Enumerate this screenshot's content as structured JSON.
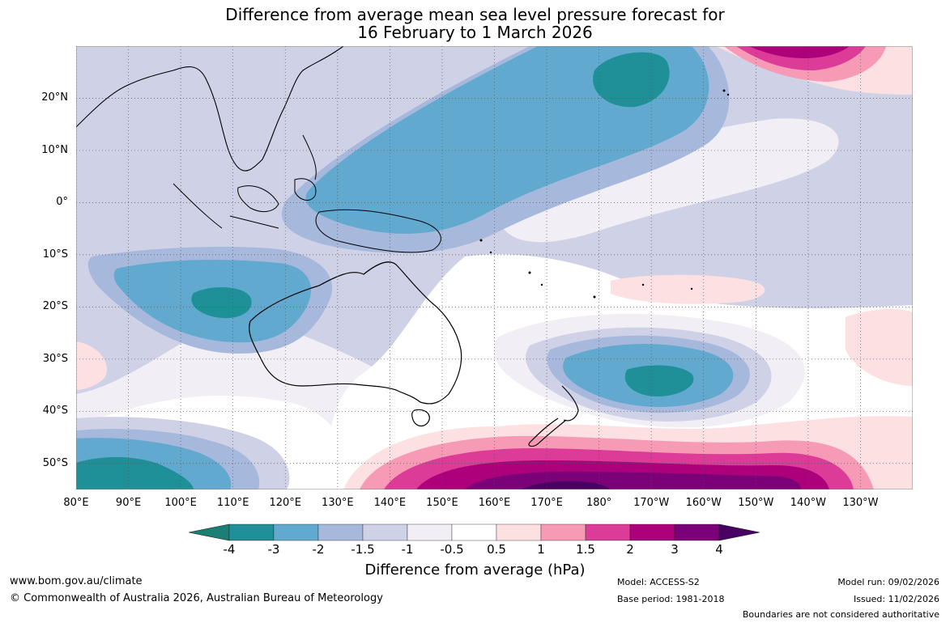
{
  "title": {
    "line1": "Difference from average mean sea level pressure forecast for",
    "line2": "16 February to 1 March 2026"
  },
  "map": {
    "lat_labels": [
      "20°N",
      "10°N",
      "0°",
      "10°S",
      "20°S",
      "30°S",
      "40°S",
      "50°S"
    ],
    "lon_labels": [
      "80°E",
      "90°E",
      "100°E",
      "110°E",
      "120°E",
      "130°E",
      "140°E",
      "150°E",
      "160°E",
      "170°E",
      "180°",
      "170°W",
      "160°W",
      "150°W",
      "140°W",
      "130°W"
    ],
    "extent": {
      "lon_min": 80,
      "lon_max": 240,
      "lat_min": -55,
      "lat_max": 30
    }
  },
  "colorbar": {
    "ticks": [
      "-4",
      "-3",
      "-2",
      "-1.5",
      "-1",
      "-0.5",
      "0.5",
      "1",
      "1.5",
      "2",
      "3",
      "4"
    ],
    "colors": [
      "#1b7f76",
      "#1f9097",
      "#62a9cf",
      "#a6b9dc",
      "#cfd1e7",
      "#f2eef6",
      "#ffffff",
      "#fde0e1",
      "#f69ab5",
      "#dc3b98",
      "#ad017c",
      "#7a0177",
      "#4a0063"
    ],
    "label": "Difference from average (hPa)"
  },
  "footer": {
    "website": "www.bom.gov.au/climate",
    "copyright": "© Commonwealth of Australia 2026, Australian Bureau of Meteorology",
    "model": "Model: ACCESS-S2",
    "base_period": "Base period: 1981-2018",
    "model_run": "Model run: 09/02/2026",
    "issued": "Issued: 11/02/2026",
    "disclaimer": "Boundaries are not considered authoritative"
  }
}
